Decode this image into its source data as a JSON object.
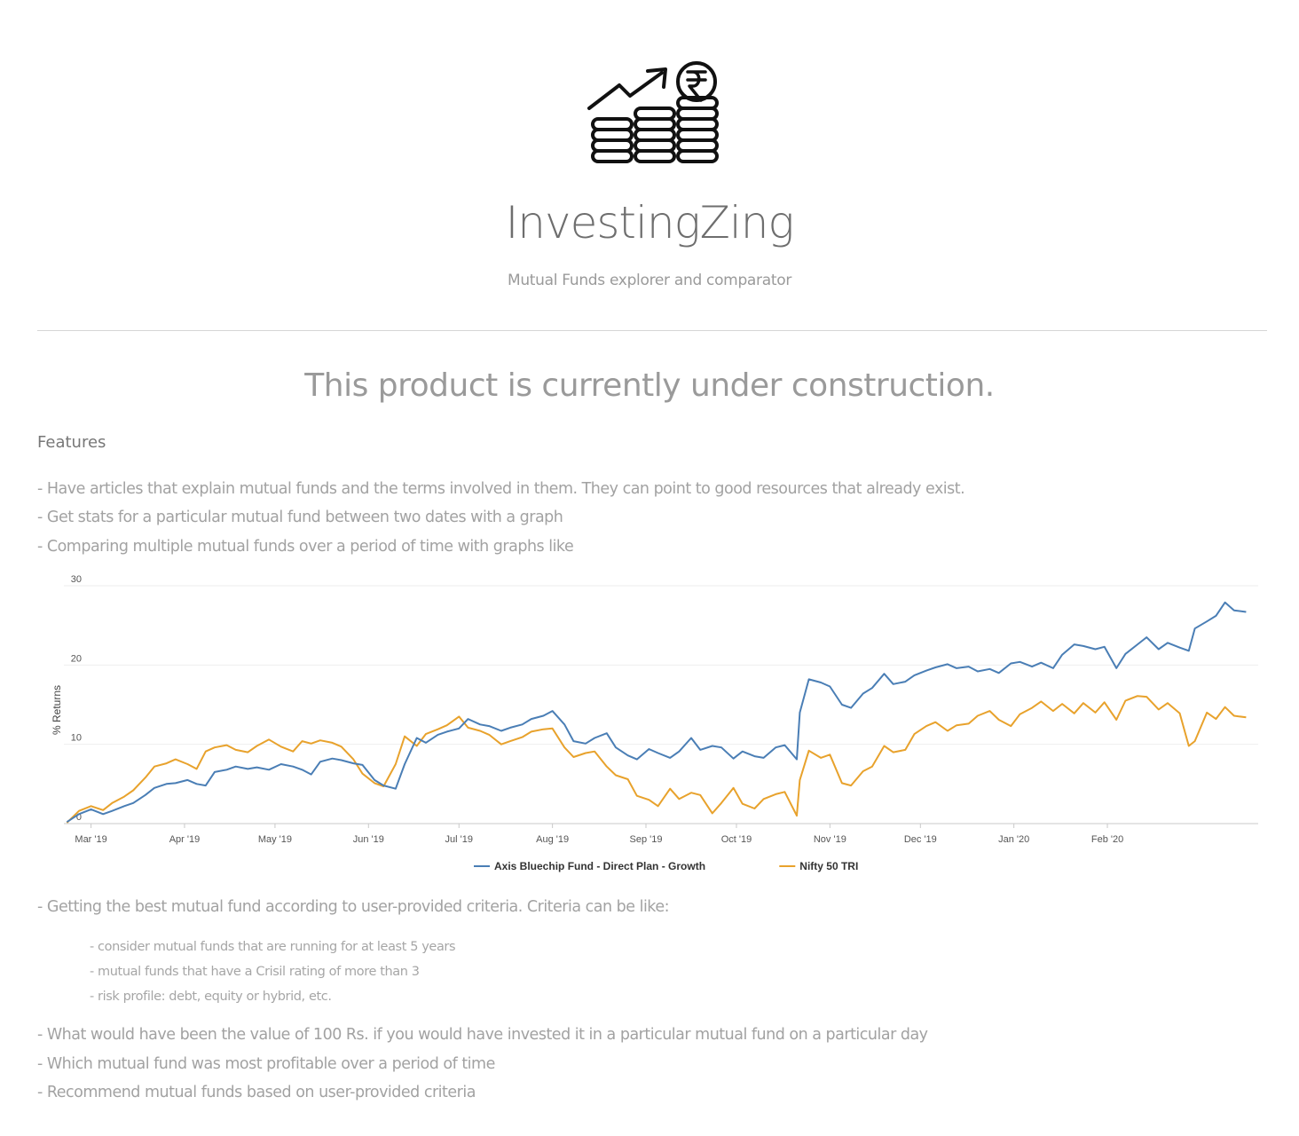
{
  "app": {
    "title": "InvestingZing",
    "subtitle": "Mutual Funds explorer and comparator",
    "logo_icon": "rupee-coins-growth-icon"
  },
  "main": {
    "headline": "This product is currently under construction.",
    "features_heading": "Features",
    "features": [
      "- Have articles that explain mutual funds and the terms involved in them. They can point to good resources that already exist.",
      "- Get stats for a particular mutual fund between two dates with a graph",
      "- Comparing multiple mutual funds over a period of time with graphs like",
      "- Getting the best mutual fund according to user-provided criteria. Criteria can be like:",
      "- What would have been the value of 100 Rs. if you would have invested it in a particular mutual fund on a particular day",
      "- Which mutual fund was most profitable over a period of time",
      "- Recommend mutual funds based on user-provided criteria"
    ],
    "criteria": [
      "- consider mutual funds that are running for at least 5 years",
      "- mutual funds that have a Crisil rating of more than 3",
      "- risk profile: debt, equity or hybrid, etc."
    ]
  },
  "chart_data": {
    "type": "line",
    "ylabel": "% Returns",
    "ylim": [
      0,
      30
    ],
    "yticks": [
      0,
      10,
      20,
      30
    ],
    "xticks": [
      "Mar '19",
      "Apr '19",
      "May '19",
      "Jun '19",
      "Jul '19",
      "Aug '19",
      "Sep '19",
      "Oct '19",
      "Nov '19",
      "Dec '19",
      "Jan '20",
      "Feb '20"
    ],
    "xlim": [
      "2019-02-20",
      "2020-03-02"
    ],
    "grid": true,
    "legend_position": "bottom",
    "series": [
      {
        "name": "Axis Bluechip Fund - Direct Plan - Growth",
        "color": "#4a7eb5",
        "points": [
          [
            "2019-02-21",
            0.2
          ],
          [
            "2019-02-25",
            1.2
          ],
          [
            "2019-03-01",
            1.8
          ],
          [
            "2019-03-05",
            1.2
          ],
          [
            "2019-03-08",
            1.6
          ],
          [
            "2019-03-12",
            2.2
          ],
          [
            "2019-03-15",
            2.6
          ],
          [
            "2019-03-19",
            3.6
          ],
          [
            "2019-03-22",
            4.5
          ],
          [
            "2019-03-26",
            5.0
          ],
          [
            "2019-03-29",
            5.1
          ],
          [
            "2019-04-02",
            5.5
          ],
          [
            "2019-04-05",
            5.0
          ],
          [
            "2019-04-08",
            4.8
          ],
          [
            "2019-04-11",
            6.5
          ],
          [
            "2019-04-15",
            6.8
          ],
          [
            "2019-04-18",
            7.2
          ],
          [
            "2019-04-22",
            6.9
          ],
          [
            "2019-04-25",
            7.1
          ],
          [
            "2019-04-29",
            6.8
          ],
          [
            "2019-05-03",
            7.5
          ],
          [
            "2019-05-07",
            7.2
          ],
          [
            "2019-05-10",
            6.8
          ],
          [
            "2019-05-13",
            6.2
          ],
          [
            "2019-05-16",
            7.8
          ],
          [
            "2019-05-20",
            8.2
          ],
          [
            "2019-05-23",
            8.0
          ],
          [
            "2019-05-27",
            7.6
          ],
          [
            "2019-05-30",
            7.4
          ],
          [
            "2019-06-03",
            5.5
          ],
          [
            "2019-06-06",
            4.8
          ],
          [
            "2019-06-10",
            4.4
          ],
          [
            "2019-06-13",
            7.5
          ],
          [
            "2019-06-17",
            10.8
          ],
          [
            "2019-06-20",
            10.2
          ],
          [
            "2019-06-24",
            11.2
          ],
          [
            "2019-06-27",
            11.6
          ],
          [
            "2019-07-01",
            12.0
          ],
          [
            "2019-07-04",
            13.2
          ],
          [
            "2019-07-08",
            12.5
          ],
          [
            "2019-07-11",
            12.3
          ],
          [
            "2019-07-15",
            11.7
          ],
          [
            "2019-07-18",
            12.1
          ],
          [
            "2019-07-22",
            12.5
          ],
          [
            "2019-07-25",
            13.2
          ],
          [
            "2019-07-29",
            13.6
          ],
          [
            "2019-08-01",
            14.2
          ],
          [
            "2019-08-05",
            12.5
          ],
          [
            "2019-08-08",
            10.4
          ],
          [
            "2019-08-12",
            10.1
          ],
          [
            "2019-08-15",
            10.8
          ],
          [
            "2019-08-19",
            11.4
          ],
          [
            "2019-08-22",
            9.6
          ],
          [
            "2019-08-26",
            8.6
          ],
          [
            "2019-08-29",
            8.1
          ],
          [
            "2019-09-02",
            9.4
          ],
          [
            "2019-09-05",
            8.9
          ],
          [
            "2019-09-09",
            8.3
          ],
          [
            "2019-09-12",
            9.1
          ],
          [
            "2019-09-16",
            10.8
          ],
          [
            "2019-09-19",
            9.3
          ],
          [
            "2019-09-23",
            9.8
          ],
          [
            "2019-09-26",
            9.6
          ],
          [
            "2019-09-30",
            8.2
          ],
          [
            "2019-10-03",
            9.1
          ],
          [
            "2019-10-07",
            8.5
          ],
          [
            "2019-10-10",
            8.3
          ],
          [
            "2019-10-14",
            9.6
          ],
          [
            "2019-10-17",
            9.9
          ],
          [
            "2019-10-21",
            8.1
          ],
          [
            "2019-10-22",
            14.0
          ],
          [
            "2019-10-25",
            18.2
          ],
          [
            "2019-10-29",
            17.8
          ],
          [
            "2019-11-01",
            17.3
          ],
          [
            "2019-11-05",
            15.0
          ],
          [
            "2019-11-08",
            14.6
          ],
          [
            "2019-11-12",
            16.4
          ],
          [
            "2019-11-15",
            17.1
          ],
          [
            "2019-11-19",
            18.9
          ],
          [
            "2019-11-22",
            17.6
          ],
          [
            "2019-11-26",
            17.9
          ],
          [
            "2019-11-29",
            18.7
          ],
          [
            "2019-12-03",
            19.3
          ],
          [
            "2019-12-06",
            19.7
          ],
          [
            "2019-12-10",
            20.1
          ],
          [
            "2019-12-13",
            19.6
          ],
          [
            "2019-12-17",
            19.8
          ],
          [
            "2019-12-20",
            19.2
          ],
          [
            "2019-12-24",
            19.5
          ],
          [
            "2019-12-27",
            19.0
          ],
          [
            "2019-12-31",
            20.2
          ],
          [
            "2020-01-03",
            20.4
          ],
          [
            "2020-01-07",
            19.8
          ],
          [
            "2020-01-10",
            20.3
          ],
          [
            "2020-01-14",
            19.6
          ],
          [
            "2020-01-17",
            21.3
          ],
          [
            "2020-01-21",
            22.6
          ],
          [
            "2020-01-24",
            22.4
          ],
          [
            "2020-01-28",
            22.0
          ],
          [
            "2020-01-31",
            22.3
          ],
          [
            "2020-02-04",
            19.6
          ],
          [
            "2020-02-07",
            21.4
          ],
          [
            "2020-02-11",
            22.6
          ],
          [
            "2020-02-14",
            23.5
          ],
          [
            "2020-02-18",
            22.0
          ],
          [
            "2020-02-21",
            22.8
          ],
          [
            "2020-02-25",
            22.2
          ],
          [
            "2020-02-28",
            21.8
          ],
          [
            "2020-03-01",
            24.6
          ],
          [
            "2020-03-05",
            25.5
          ],
          [
            "2020-03-08",
            26.2
          ],
          [
            "2020-03-11",
            27.9
          ],
          [
            "2020-03-14",
            26.9
          ],
          [
            "2020-03-18",
            26.7
          ]
        ]
      },
      {
        "name": "Nifty 50 TRI",
        "color": "#e8a22c",
        "points": [
          [
            "2019-02-21",
            0.1
          ],
          [
            "2019-02-25",
            1.6
          ],
          [
            "2019-03-01",
            2.2
          ],
          [
            "2019-03-05",
            1.7
          ],
          [
            "2019-03-08",
            2.6
          ],
          [
            "2019-03-12",
            3.4
          ],
          [
            "2019-03-15",
            4.2
          ],
          [
            "2019-03-19",
            5.8
          ],
          [
            "2019-03-22",
            7.2
          ],
          [
            "2019-03-26",
            7.6
          ],
          [
            "2019-03-29",
            8.1
          ],
          [
            "2019-04-02",
            7.5
          ],
          [
            "2019-04-05",
            6.9
          ],
          [
            "2019-04-08",
            9.1
          ],
          [
            "2019-04-11",
            9.6
          ],
          [
            "2019-04-15",
            9.9
          ],
          [
            "2019-04-18",
            9.3
          ],
          [
            "2019-04-22",
            9.0
          ],
          [
            "2019-04-25",
            9.8
          ],
          [
            "2019-04-29",
            10.6
          ],
          [
            "2019-05-03",
            9.7
          ],
          [
            "2019-05-07",
            9.1
          ],
          [
            "2019-05-10",
            10.4
          ],
          [
            "2019-05-13",
            10.1
          ],
          [
            "2019-05-16",
            10.5
          ],
          [
            "2019-05-20",
            10.2
          ],
          [
            "2019-05-23",
            9.7
          ],
          [
            "2019-05-27",
            8.1
          ],
          [
            "2019-05-30",
            6.3
          ],
          [
            "2019-06-03",
            5.1
          ],
          [
            "2019-06-06",
            4.7
          ],
          [
            "2019-06-10",
            7.5
          ],
          [
            "2019-06-13",
            11.0
          ],
          [
            "2019-06-17",
            9.8
          ],
          [
            "2019-06-20",
            11.3
          ],
          [
            "2019-06-24",
            11.9
          ],
          [
            "2019-06-27",
            12.4
          ],
          [
            "2019-07-01",
            13.5
          ],
          [
            "2019-07-04",
            12.1
          ],
          [
            "2019-07-08",
            11.7
          ],
          [
            "2019-07-11",
            11.2
          ],
          [
            "2019-07-15",
            10.0
          ],
          [
            "2019-07-18",
            10.4
          ],
          [
            "2019-07-22",
            10.9
          ],
          [
            "2019-07-25",
            11.6
          ],
          [
            "2019-07-29",
            11.9
          ],
          [
            "2019-08-01",
            12.0
          ],
          [
            "2019-08-05",
            9.6
          ],
          [
            "2019-08-08",
            8.4
          ],
          [
            "2019-08-12",
            8.9
          ],
          [
            "2019-08-15",
            9.1
          ],
          [
            "2019-08-19",
            7.2
          ],
          [
            "2019-08-22",
            6.1
          ],
          [
            "2019-08-26",
            5.6
          ],
          [
            "2019-08-29",
            3.5
          ],
          [
            "2019-09-02",
            3.0
          ],
          [
            "2019-09-05",
            2.2
          ],
          [
            "2019-09-09",
            4.4
          ],
          [
            "2019-09-12",
            3.1
          ],
          [
            "2019-09-16",
            3.9
          ],
          [
            "2019-09-19",
            3.6
          ],
          [
            "2019-09-23",
            1.3
          ],
          [
            "2019-09-26",
            2.6
          ],
          [
            "2019-09-30",
            4.5
          ],
          [
            "2019-10-03",
            2.5
          ],
          [
            "2019-10-07",
            1.9
          ],
          [
            "2019-10-10",
            3.1
          ],
          [
            "2019-10-14",
            3.7
          ],
          [
            "2019-10-17",
            4.0
          ],
          [
            "2019-10-21",
            1.0
          ],
          [
            "2019-10-22",
            5.5
          ],
          [
            "2019-10-25",
            9.2
          ],
          [
            "2019-10-29",
            8.3
          ],
          [
            "2019-11-01",
            8.7
          ],
          [
            "2019-11-05",
            5.1
          ],
          [
            "2019-11-08",
            4.8
          ],
          [
            "2019-11-12",
            6.6
          ],
          [
            "2019-11-15",
            7.2
          ],
          [
            "2019-11-19",
            9.8
          ],
          [
            "2019-11-22",
            9.0
          ],
          [
            "2019-11-26",
            9.3
          ],
          [
            "2019-11-29",
            11.3
          ],
          [
            "2019-12-03",
            12.3
          ],
          [
            "2019-12-06",
            12.8
          ],
          [
            "2019-12-10",
            11.7
          ],
          [
            "2019-12-13",
            12.4
          ],
          [
            "2019-12-17",
            12.6
          ],
          [
            "2019-12-20",
            13.6
          ],
          [
            "2019-12-24",
            14.2
          ],
          [
            "2019-12-27",
            13.1
          ],
          [
            "2019-12-31",
            12.3
          ],
          [
            "2020-01-03",
            13.8
          ],
          [
            "2020-01-07",
            14.6
          ],
          [
            "2020-01-10",
            15.4
          ],
          [
            "2020-01-14",
            14.2
          ],
          [
            "2020-01-17",
            15.1
          ],
          [
            "2020-01-21",
            13.9
          ],
          [
            "2020-01-24",
            15.2
          ],
          [
            "2020-01-28",
            14.0
          ],
          [
            "2020-01-31",
            15.3
          ],
          [
            "2020-02-04",
            13.1
          ],
          [
            "2020-02-07",
            15.5
          ],
          [
            "2020-02-11",
            16.1
          ],
          [
            "2020-02-14",
            16.0
          ],
          [
            "2020-02-18",
            14.4
          ],
          [
            "2020-02-21",
            15.2
          ],
          [
            "2020-02-25",
            13.9
          ],
          [
            "2020-02-28",
            9.8
          ],
          [
            "2020-03-01",
            10.4
          ],
          [
            "2020-03-05",
            14.0
          ],
          [
            "2020-03-08",
            13.2
          ],
          [
            "2020-03-11",
            14.7
          ],
          [
            "2020-03-14",
            13.6
          ],
          [
            "2020-03-18",
            13.4
          ]
        ]
      }
    ]
  }
}
